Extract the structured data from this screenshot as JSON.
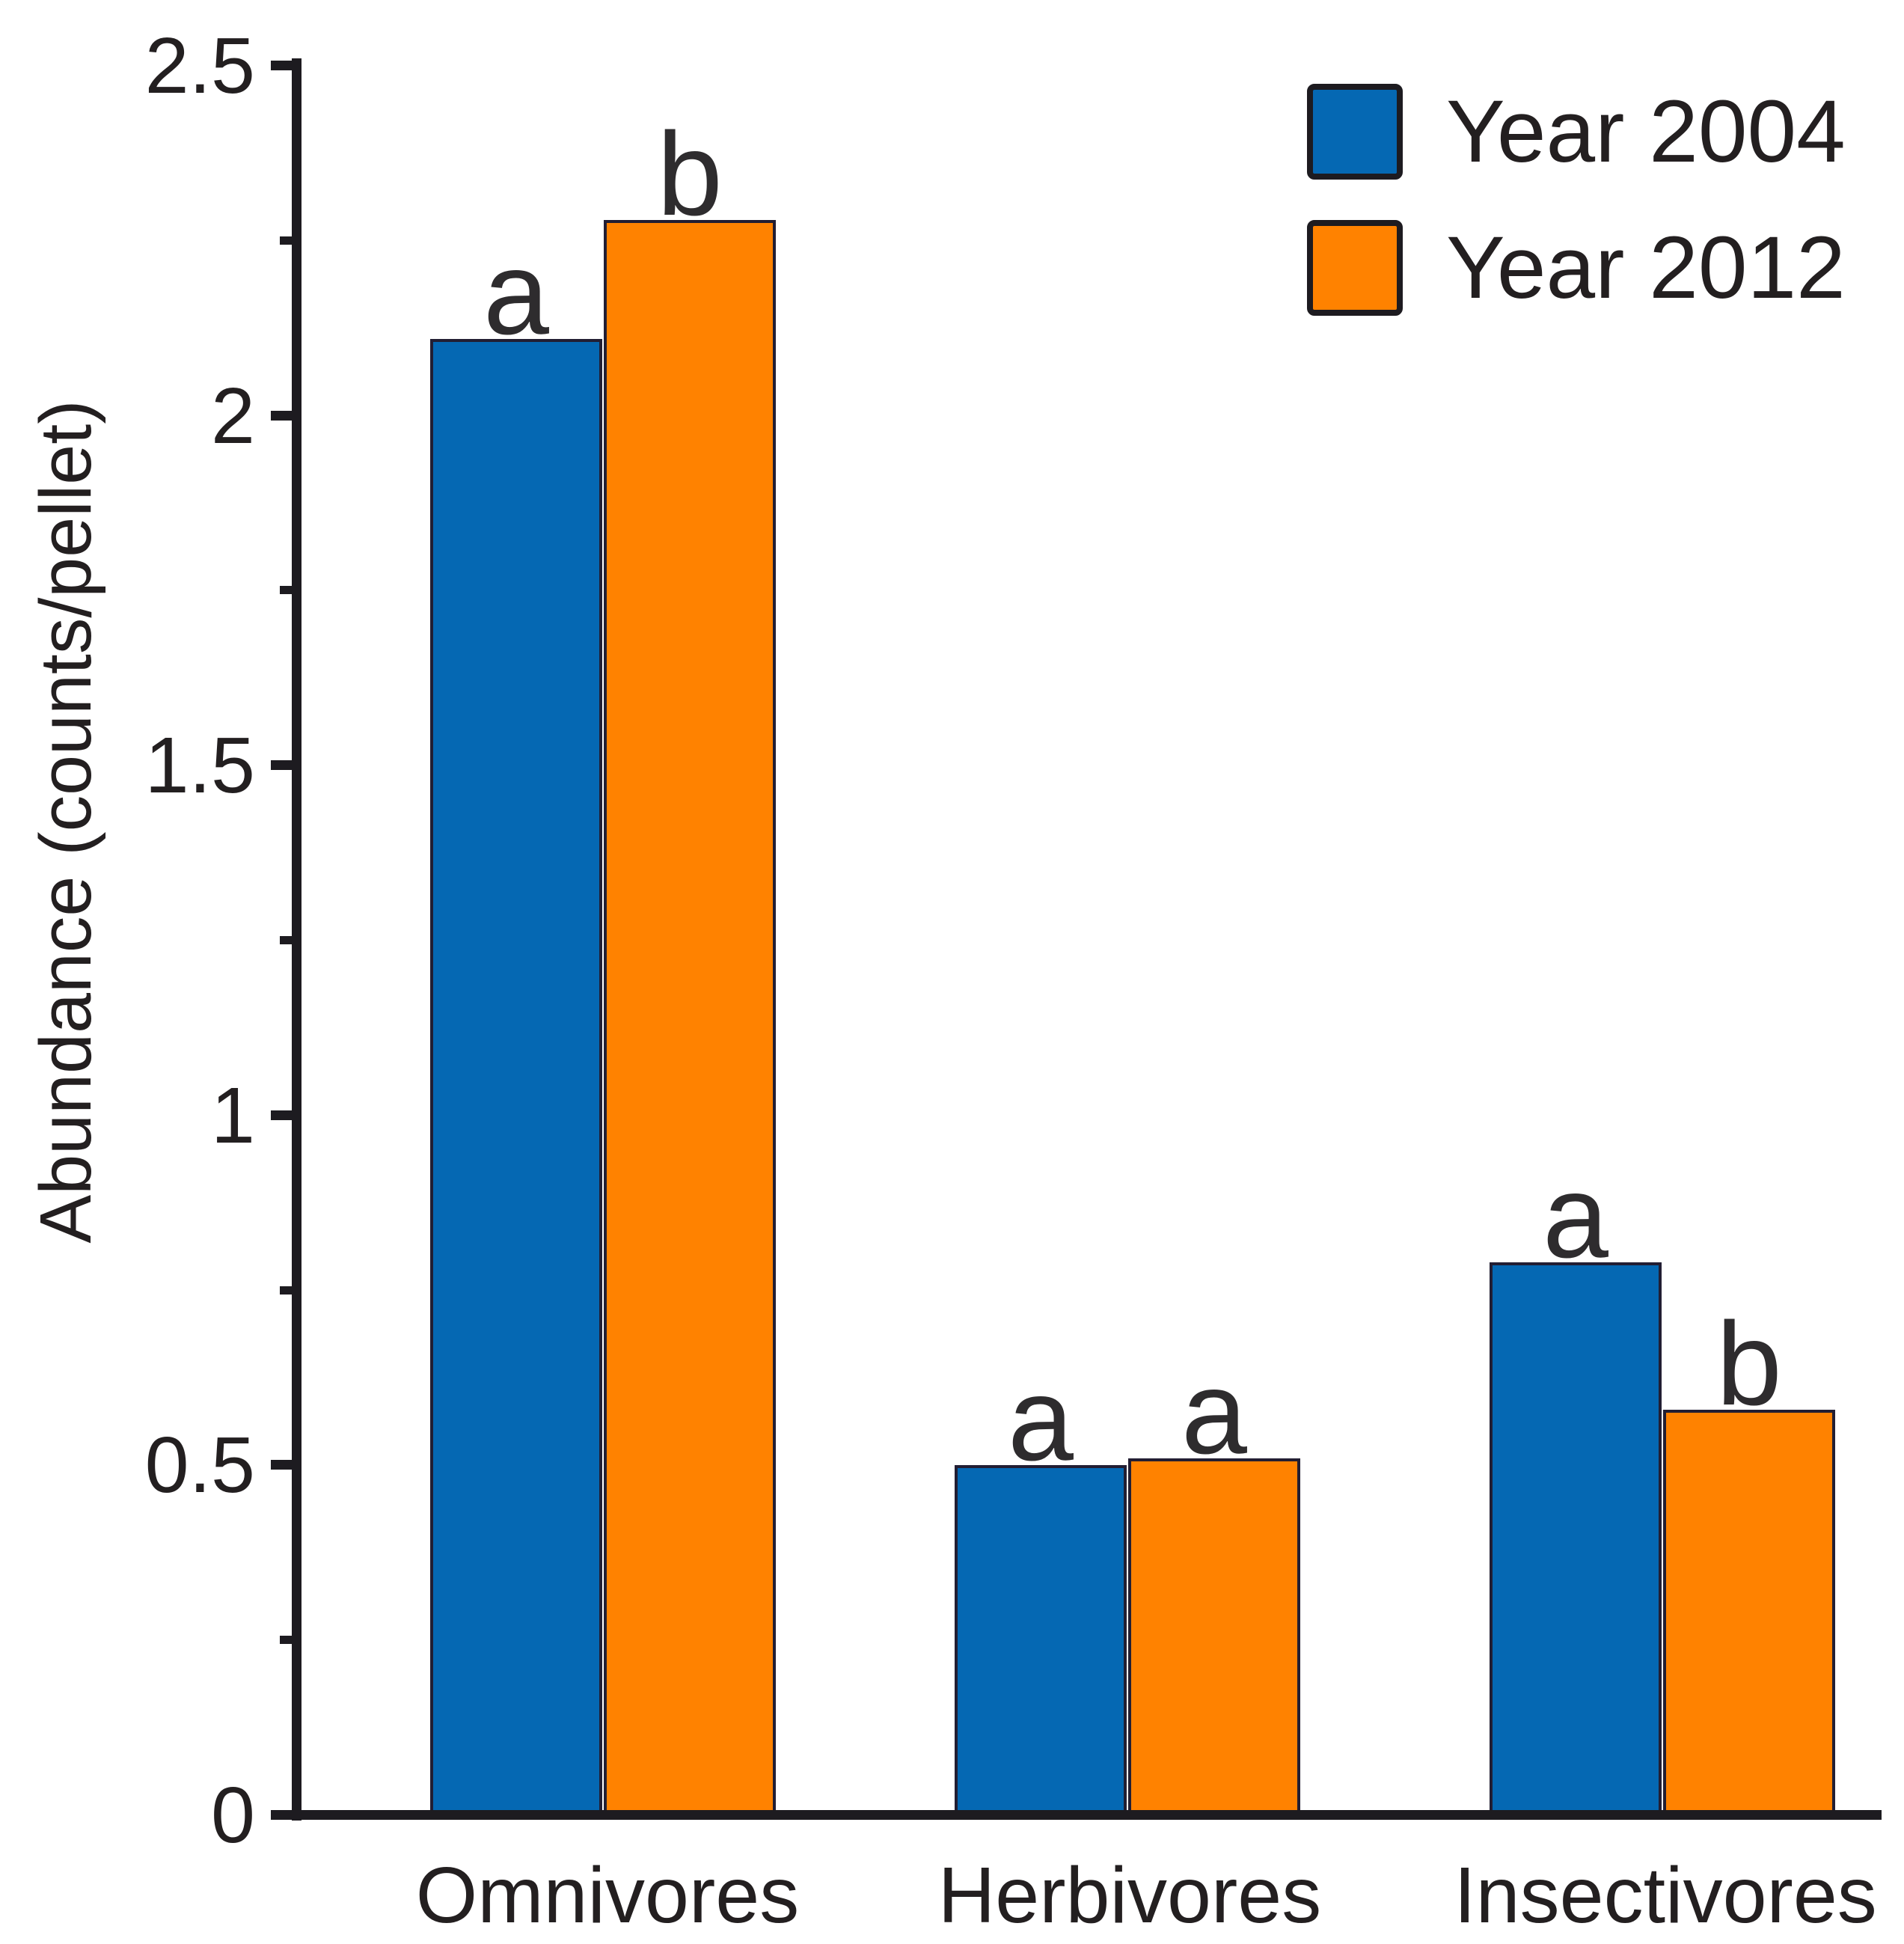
{
  "chart_data": {
    "type": "bar",
    "title": "",
    "categories": [
      "Omnivores",
      "Herbivores",
      "Insectivores"
    ],
    "series": [
      {
        "name": "Year 2004",
        "color": "#0568B3",
        "values": [
          2.11,
          0.5,
          0.79
        ],
        "sig_letters": [
          "a",
          "a",
          "a"
        ]
      },
      {
        "name": "Year 2012",
        "color": "#FF8200",
        "values": [
          2.28,
          0.51,
          0.58
        ],
        "sig_letters": [
          "b",
          "a",
          "b"
        ]
      }
    ],
    "xlabel": "",
    "ylabel": "Abundance (counts/pellet)",
    "ylim": [
      0,
      2.5
    ],
    "yticks": [
      "0",
      "0.5",
      "1",
      "1.5",
      "2",
      "2.5"
    ],
    "ytick_step": 0.5,
    "minor_tick_step": 0.25,
    "grid": false,
    "legend_position": "top-right",
    "axis_color": "#1d1b20",
    "sig_letter_color": "#2e2c2e"
  }
}
